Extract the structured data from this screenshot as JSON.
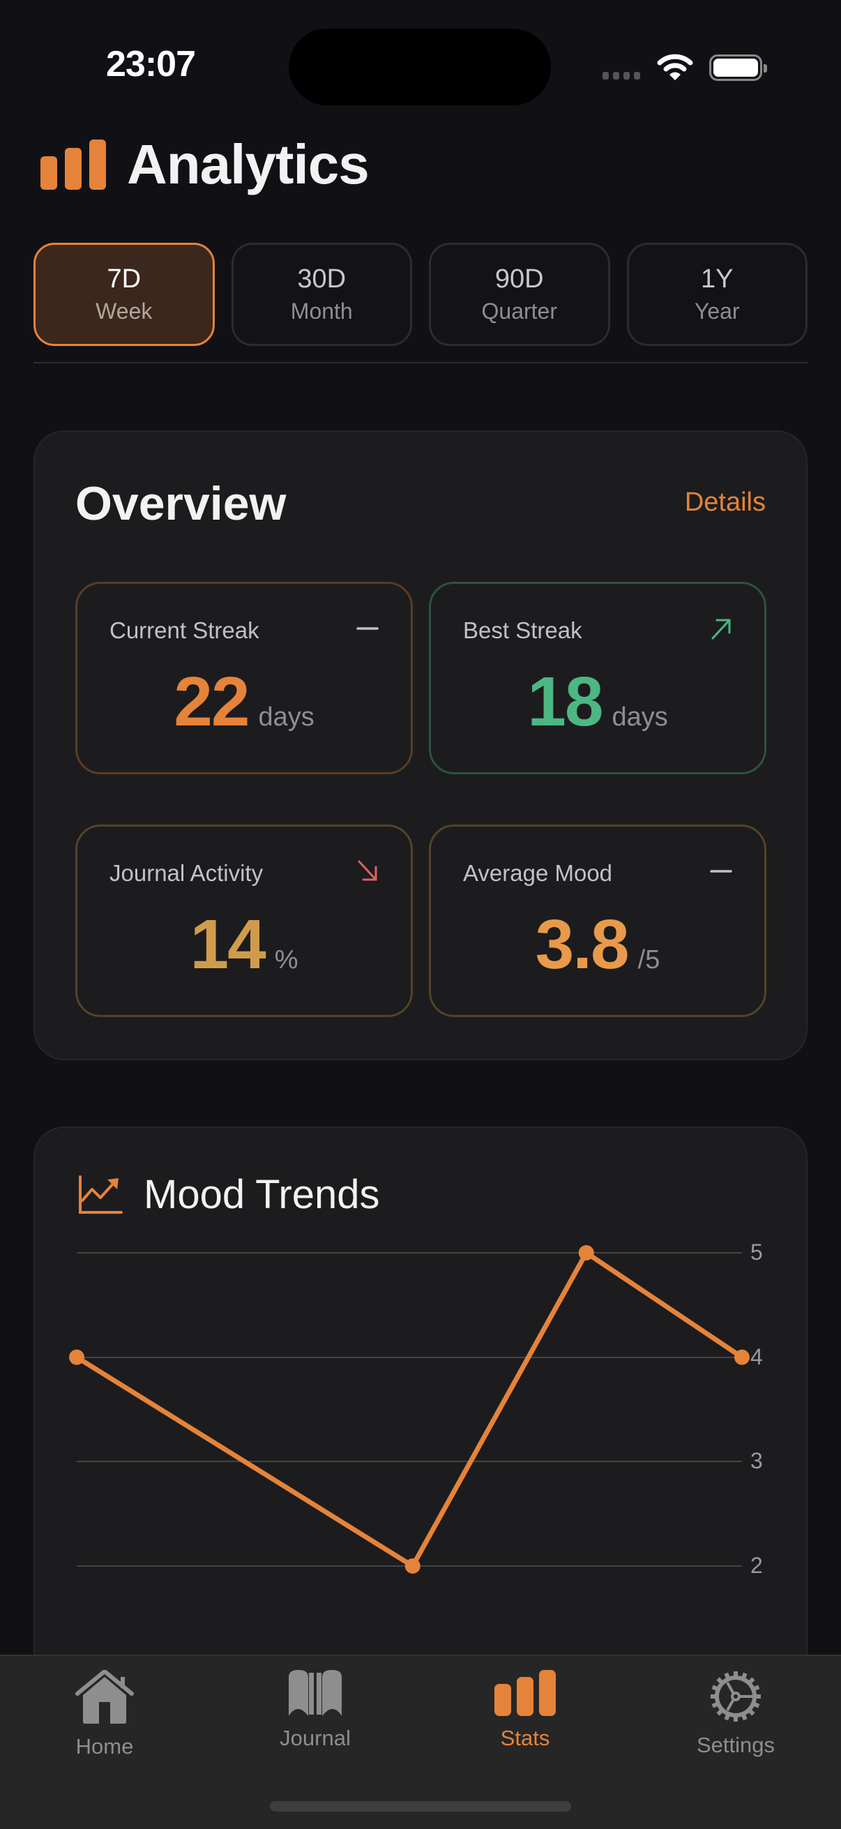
{
  "status_bar": {
    "time": "23:07"
  },
  "header": {
    "title": "Analytics",
    "icon": "bar-chart-icon"
  },
  "periods": [
    {
      "code": "7D",
      "label": "Week",
      "active": true
    },
    {
      "code": "30D",
      "label": "Month",
      "active": false
    },
    {
      "code": "90D",
      "label": "Quarter",
      "active": false
    },
    {
      "code": "1Y",
      "label": "Year",
      "active": false
    }
  ],
  "overview": {
    "title": "Overview",
    "details_label": "Details",
    "stats": [
      {
        "label": "Current Streak",
        "value": "22",
        "unit": "days",
        "trend": "flat"
      },
      {
        "label": "Best Streak",
        "value": "18",
        "unit": "days",
        "trend": "up"
      },
      {
        "label": "Journal Activity",
        "value": "14",
        "unit": "%",
        "trend": "down"
      },
      {
        "label": "Average Mood",
        "value": "3.8",
        "unit": "/5",
        "trend": "flat"
      }
    ]
  },
  "mood_trends": {
    "title": "Mood Trends",
    "icon": "trend-chart-icon",
    "y_ticks": [
      "5",
      "4",
      "3",
      "2"
    ]
  },
  "chart_data": {
    "type": "line",
    "title": "Mood Trends",
    "x": [
      0,
      1,
      2,
      3
    ],
    "series": [
      {
        "name": "Mood",
        "values": [
          4,
          2,
          5,
          4
        ],
        "color": "#e5833a"
      }
    ],
    "x_positions_relative": [
      0.0,
      0.505,
      0.766,
      1.0
    ],
    "y_ticks": [
      5,
      4,
      3,
      2
    ],
    "ylim": [
      2,
      5
    ],
    "grid": true,
    "y_axis_position": "right",
    "xlabel": "",
    "ylabel": ""
  },
  "tab_bar": {
    "items": [
      {
        "label": "Home",
        "icon": "house-icon",
        "active": false
      },
      {
        "label": "Journal",
        "icon": "book-icon",
        "active": false
      },
      {
        "label": "Stats",
        "icon": "bar-chart-icon",
        "active": true
      },
      {
        "label": "Settings",
        "icon": "gear-icon",
        "active": false
      }
    ]
  },
  "colors": {
    "accent": "#e5833a",
    "positive": "#4cb782",
    "negative": "#e0625e",
    "background": "#111115",
    "card": "#1c1c1e"
  }
}
